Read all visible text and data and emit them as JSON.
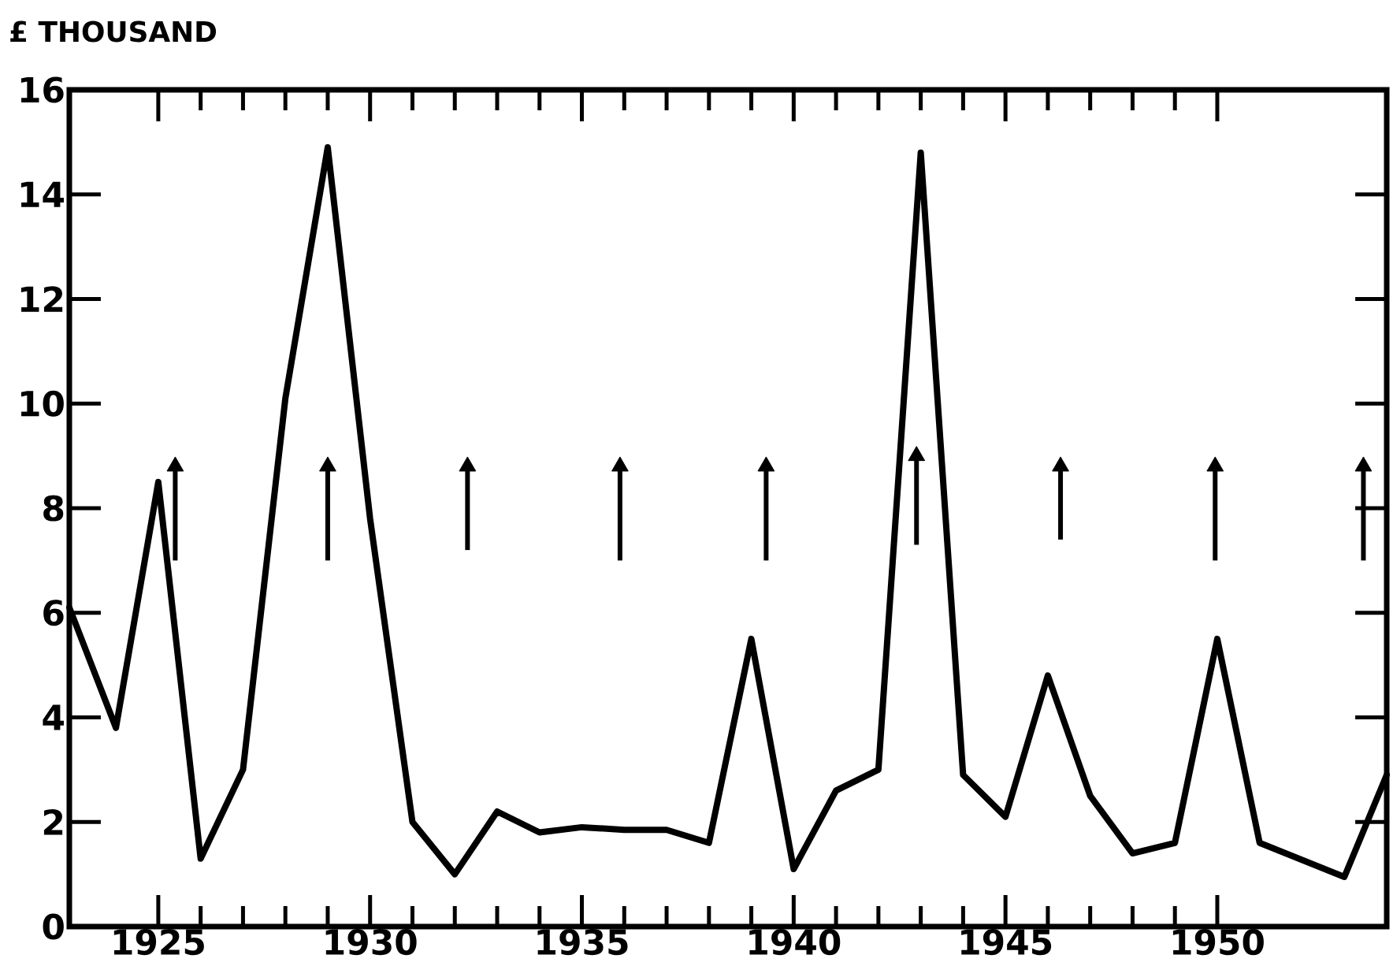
{
  "chart_data": {
    "type": "line",
    "ylabel": "£ THOUSAND",
    "xlim": [
      1922.9,
      1954
    ],
    "ylim": [
      0,
      16
    ],
    "xticks": [
      1925,
      1930,
      1935,
      1940,
      1945,
      1950
    ],
    "yticks": [
      0,
      2,
      4,
      6,
      8,
      10,
      12,
      14,
      16
    ],
    "grid": false,
    "legend": false,
    "marker": "none",
    "line_style": "solid",
    "series": [
      {
        "color": "#000000",
        "x": [
          1922.9,
          1924,
          1925,
          1926,
          1927,
          1928,
          1929,
          1930,
          1931,
          1932,
          1933,
          1934,
          1935,
          1936,
          1937,
          1938,
          1939,
          1940,
          1941,
          1942,
          1943,
          1944,
          1945,
          1946,
          1947,
          1948,
          1949,
          1950,
          1951,
          1953,
          1954
        ],
        "values": [
          6.1,
          3.8,
          8.5,
          1.3,
          3.0,
          10.1,
          14.9,
          7.8,
          2.0,
          1.0,
          2.2,
          1.8,
          1.9,
          1.85,
          1.85,
          1.6,
          5.5,
          1.1,
          2.6,
          3.0,
          14.8,
          2.9,
          2.1,
          4.8,
          2.5,
          1.4,
          1.6,
          5.5,
          1.6,
          0.95,
          2.9
        ]
      },
      {
        "type": "line",
        "marker": "triangle",
        "color": "#000000",
        "x": [
          1925.4,
          1925.4,
          null,
          1929,
          1929,
          null,
          1932.3,
          1932.3,
          null,
          1935.9,
          1935.9,
          null,
          1939.35,
          1939.35,
          null,
          1942.9,
          1942.9,
          null,
          1946.3,
          1946.3,
          null,
          1949.95,
          1949.95,
          null,
          1953.45,
          1953.45
        ],
        "values": [
          7.0,
          8.8,
          null,
          7.0,
          8.8,
          null,
          7.2,
          8.8,
          null,
          7.0,
          8.8,
          null,
          7.0,
          8.8,
          null,
          7.3,
          9.0,
          null,
          7.4,
          8.8,
          null,
          7.0,
          8.8,
          null,
          7.0,
          8.8
        ]
      }
    ]
  }
}
